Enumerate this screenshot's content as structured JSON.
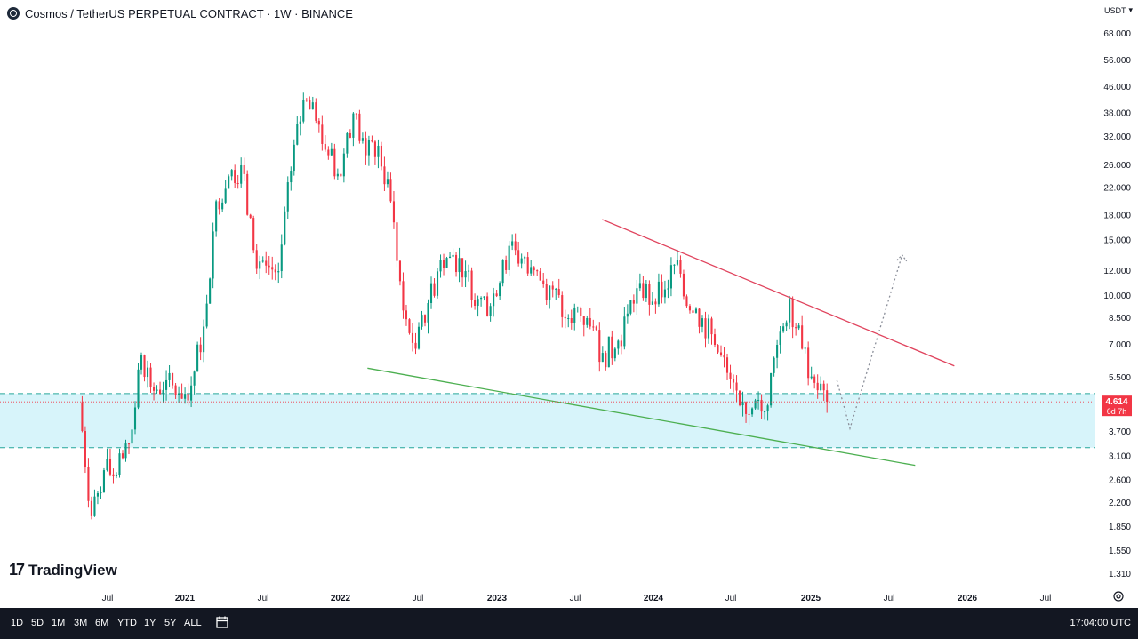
{
  "header": {
    "symbol": "Cosmos / TetherUS PERPETUAL CONTRACT · 1W · BINANCE"
  },
  "currency": "USDT",
  "brand": "TradingView",
  "bottom_bar": {
    "ranges": [
      "1D",
      "5D",
      "1M",
      "3M",
      "6M",
      "YTD",
      "1Y",
      "5Y",
      "ALL"
    ],
    "time": "17:04:00 UTC"
  },
  "colors": {
    "up": "#26a69a",
    "up_candle": "#089981",
    "down": "#f23645",
    "resistance_line": "#e0435d",
    "support_line": "#4caf50",
    "zone_fill": "#d7f4fa",
    "zone_border": "#26a69a"
  },
  "chart_data": {
    "type": "candlestick",
    "scale": "log",
    "y_ticks": [
      "68.000",
      "56.000",
      "46.000",
      "38.000",
      "32.000",
      "26.000",
      "22.000",
      "18.000",
      "15.000",
      "12.000",
      "10.000",
      "8.500",
      "7.000",
      "5.500",
      "3.700",
      "3.100",
      "2.600",
      "2.200",
      "1.850",
      "1.550",
      "1.310"
    ],
    "x_ticks": [
      "Jul",
      "2021",
      "Jul",
      "2022",
      "Jul",
      "2023",
      "Jul",
      "2024",
      "Jul",
      "2025",
      "Jul",
      "2026",
      "Jul"
    ],
    "last_price": {
      "value": "4.614",
      "countdown": "6d 7h"
    },
    "series": [
      {
        "date": "2020-05",
        "close": 4.6
      },
      {
        "date": "2020-05",
        "close": 2.0
      },
      {
        "date": "2020-06",
        "close": 2.8
      },
      {
        "date": "2020-07",
        "close": 2.7
      },
      {
        "date": "2020-08",
        "close": 3.4
      },
      {
        "date": "2020-08",
        "close": 6.5
      },
      {
        "date": "2020-09",
        "close": 5.0
      },
      {
        "date": "2020-10",
        "close": 5.4
      },
      {
        "date": "2020-11",
        "close": 4.9
      },
      {
        "date": "2020-12",
        "close": 5.2
      },
      {
        "date": "2021-01",
        "close": 8.0
      },
      {
        "date": "2021-02",
        "close": 20.0
      },
      {
        "date": "2021-03",
        "close": 24.0
      },
      {
        "date": "2021-04",
        "close": 26.0
      },
      {
        "date": "2021-05",
        "close": 14.0
      },
      {
        "date": "2021-06",
        "close": 12.5
      },
      {
        "date": "2021-07",
        "close": 12.0
      },
      {
        "date": "2021-08",
        "close": 25.0
      },
      {
        "date": "2021-09",
        "close": 42.0
      },
      {
        "date": "2021-10",
        "close": 36.0
      },
      {
        "date": "2021-11",
        "close": 28.0
      },
      {
        "date": "2021-12",
        "close": 24.0
      },
      {
        "date": "2022-01",
        "close": 38.0
      },
      {
        "date": "2022-02",
        "close": 28.0
      },
      {
        "date": "2022-03",
        "close": 30.0
      },
      {
        "date": "2022-04",
        "close": 20.0
      },
      {
        "date": "2022-05",
        "close": 9.0
      },
      {
        "date": "2022-06",
        "close": 6.8
      },
      {
        "date": "2022-07",
        "close": 9.5
      },
      {
        "date": "2022-08",
        "close": 13.0
      },
      {
        "date": "2022-09",
        "close": 13.5
      },
      {
        "date": "2022-10",
        "close": 12.0
      },
      {
        "date": "2022-11",
        "close": 9.8
      },
      {
        "date": "2022-12",
        "close": 9.3
      },
      {
        "date": "2023-01",
        "close": 13.0
      },
      {
        "date": "2023-02",
        "close": 14.0
      },
      {
        "date": "2023-03",
        "close": 11.8
      },
      {
        "date": "2023-04",
        "close": 11.2
      },
      {
        "date": "2023-05",
        "close": 10.5
      },
      {
        "date": "2023-06",
        "close": 8.5
      },
      {
        "date": "2023-07",
        "close": 9.2
      },
      {
        "date": "2023-08",
        "close": 8.0
      },
      {
        "date": "2023-09",
        "close": 6.6
      },
      {
        "date": "2023-10",
        "close": 6.8
      },
      {
        "date": "2023-11",
        "close": 8.8
      },
      {
        "date": "2023-12",
        "close": 11.0
      },
      {
        "date": "2024-01",
        "close": 9.6
      },
      {
        "date": "2024-02",
        "close": 10.5
      },
      {
        "date": "2024-03",
        "close": 13.0
      },
      {
        "date": "2024-04",
        "close": 9.0
      },
      {
        "date": "2024-05",
        "close": 8.5
      },
      {
        "date": "2024-06",
        "close": 7.0
      },
      {
        "date": "2024-07",
        "close": 5.7
      },
      {
        "date": "2024-08",
        "close": 4.5
      },
      {
        "date": "2024-09",
        "close": 4.4
      },
      {
        "date": "2024-10",
        "close": 4.3
      },
      {
        "date": "2024-11",
        "close": 7.0
      },
      {
        "date": "2024-12",
        "close": 9.8
      },
      {
        "date": "2024-12",
        "close": 6.8
      },
      {
        "date": "2025-01",
        "close": 5.3
      },
      {
        "date": "2025-02",
        "close": 4.614
      }
    ],
    "annotations": [
      {
        "type": "trendline",
        "name": "resistance",
        "from": {
          "date": "2023-09",
          "price": 17.5
        },
        "to": {
          "date": "2025-12",
          "price": 6.0
        }
      },
      {
        "type": "trendline",
        "name": "support",
        "from": {
          "date": "2022-03",
          "price": 5.9
        },
        "to": {
          "date": "2025-09",
          "price": 2.9
        }
      },
      {
        "type": "zone",
        "top": 4.9,
        "bottom": 3.3
      },
      {
        "type": "projection",
        "points": [
          {
            "date": "2025-03",
            "price": 5.4
          },
          {
            "date": "2025-04",
            "price": 3.8
          },
          {
            "date": "2025-08",
            "price": 13.5
          }
        ]
      }
    ]
  }
}
